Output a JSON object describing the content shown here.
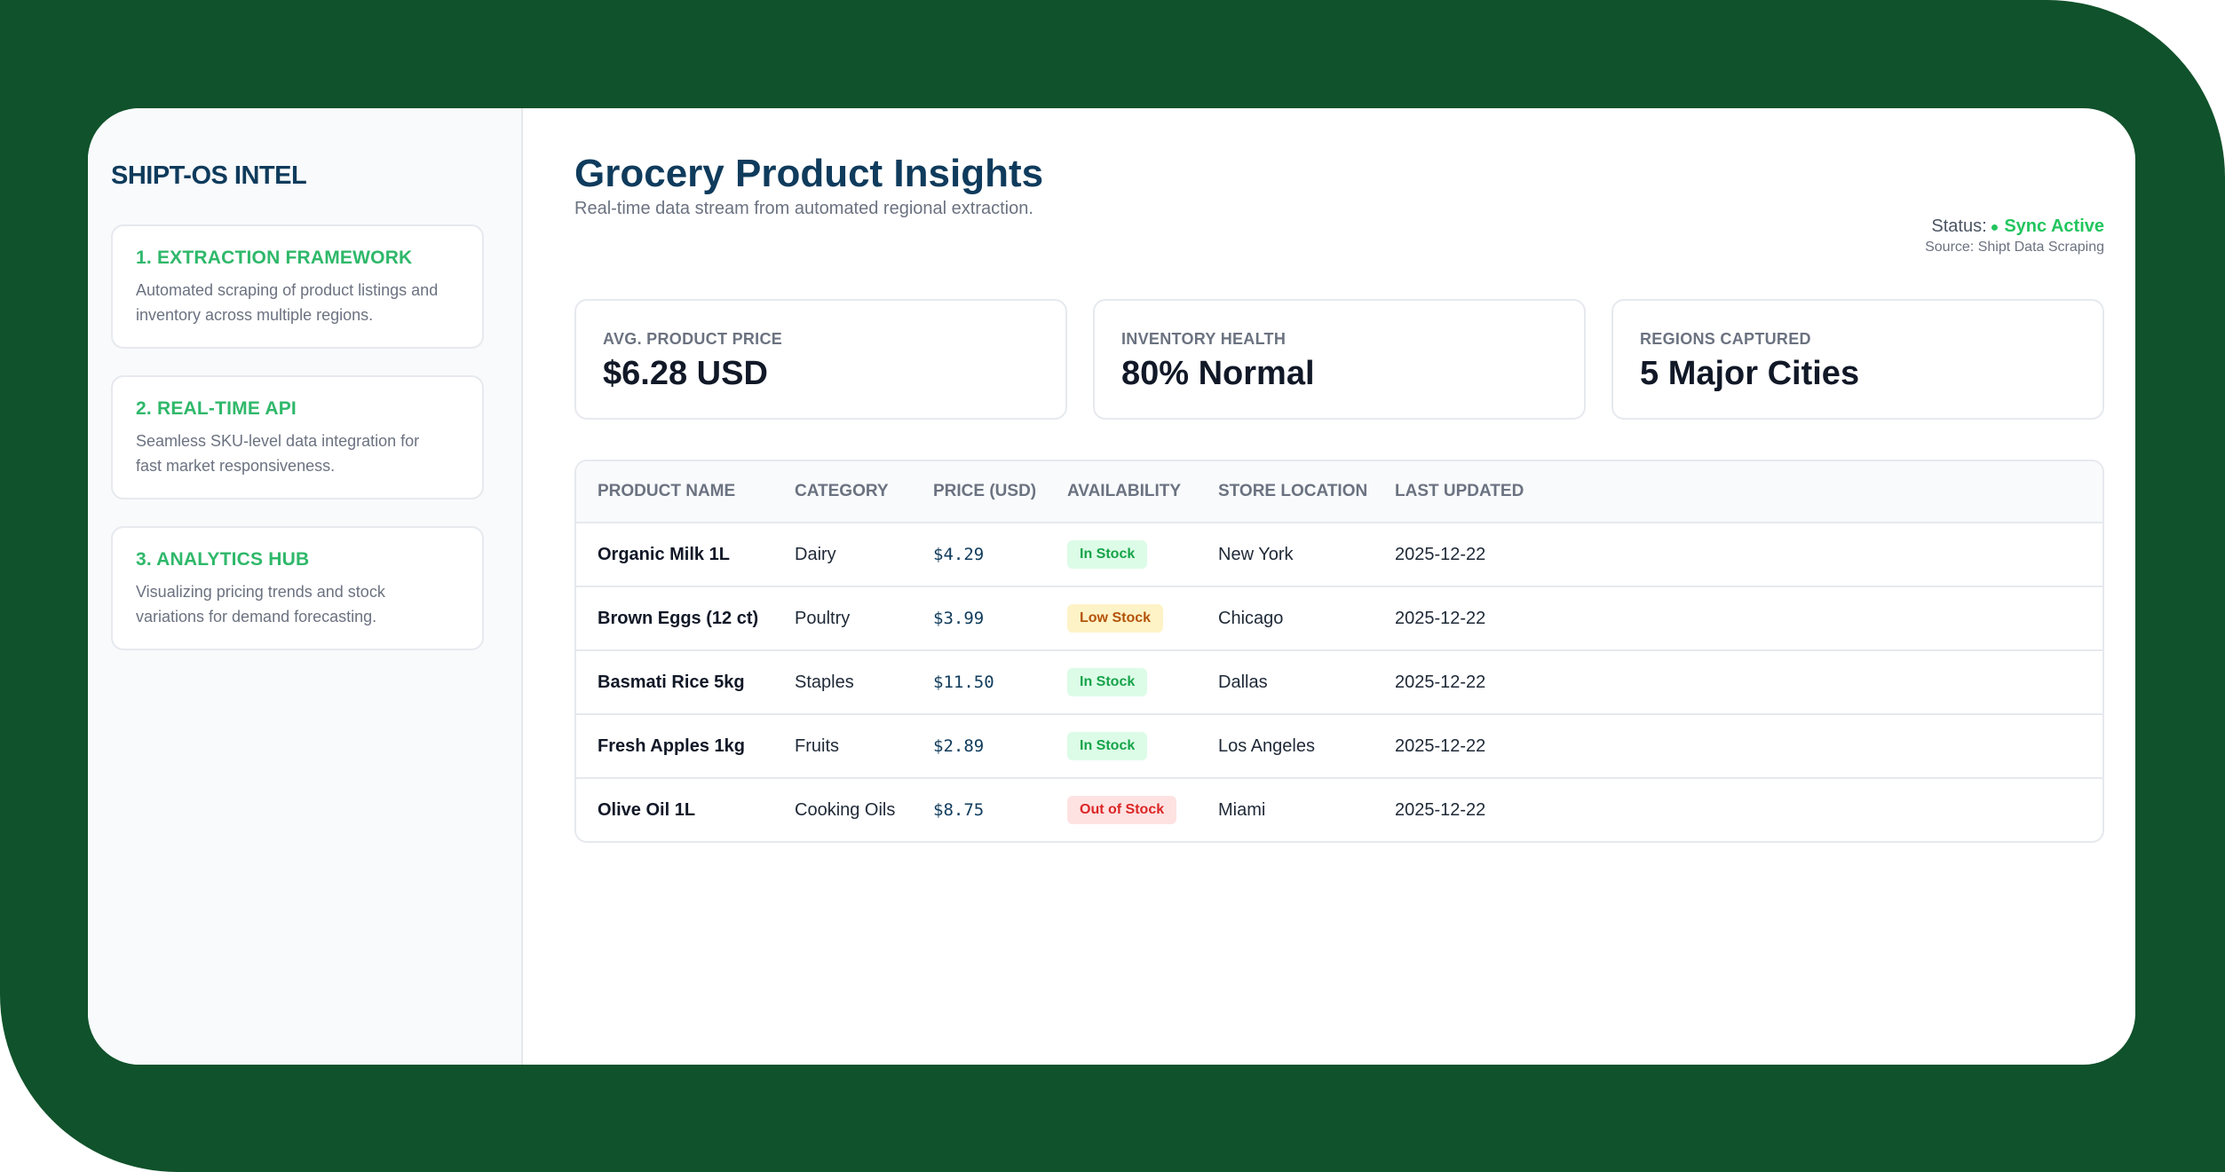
{
  "colors": {
    "frame": "#10522b",
    "brand": "#0f3b5c",
    "accent": "#2fb86a",
    "in_stock": "#16a34a",
    "low_stock": "#b45309",
    "out_of_stock": "#dc2626"
  },
  "sidebar": {
    "brand": "SHIPT-OS INTEL",
    "cards": [
      {
        "title": "1. EXTRACTION FRAMEWORK",
        "desc_line1": "Automated scraping of product listings and",
        "desc_line2": "inventory across multiple regions."
      },
      {
        "title": "2. REAL-TIME API",
        "desc_line1": "Seamless SKU-level data integration for",
        "desc_line2": "fast market responsiveness."
      },
      {
        "title": "3. ANALYTICS HUB",
        "desc_line1": "Visualizing pricing trends and stock",
        "desc_line2": "variations for demand forecasting."
      }
    ]
  },
  "header": {
    "title": "Grocery Product Insights",
    "subtitle": "Real-time data stream from automated regional extraction.",
    "status_label": "Status:",
    "status_value": "Sync Active",
    "source": "Source: Shipt Data Scraping"
  },
  "kpis": [
    {
      "label": "AVG. PRODUCT PRICE",
      "value": "$6.28 USD"
    },
    {
      "label": "INVENTORY HEALTH",
      "value": "80% Normal"
    },
    {
      "label": "REGIONS CAPTURED",
      "value": "5 Major Cities"
    }
  ],
  "table": {
    "columns": [
      "PRODUCT NAME",
      "CATEGORY",
      "PRICE (USD)",
      "AVAILABILITY",
      "STORE LOCATION",
      "LAST UPDATED"
    ],
    "rows": [
      {
        "name": "Organic Milk 1L",
        "category": "Dairy",
        "price": "$4.29",
        "availability": "In Stock",
        "location": "New York",
        "updated": "2025-12-22"
      },
      {
        "name": "Brown Eggs (12 ct)",
        "category": "Poultry",
        "price": "$3.99",
        "availability": "Low Stock",
        "location": "Chicago",
        "updated": "2025-12-22"
      },
      {
        "name": "Basmati Rice 5kg",
        "category": "Staples",
        "price": "$11.50",
        "availability": "In Stock",
        "location": "Dallas",
        "updated": "2025-12-22"
      },
      {
        "name": "Fresh Apples 1kg",
        "category": "Fruits",
        "price": "$2.89",
        "availability": "In Stock",
        "location": "Los Angeles",
        "updated": "2025-12-22"
      },
      {
        "name": "Olive Oil 1L",
        "category": "Cooking Oils",
        "price": "$8.75",
        "availability": "Out of Stock",
        "location": "Miami",
        "updated": "2025-12-22"
      }
    ]
  }
}
